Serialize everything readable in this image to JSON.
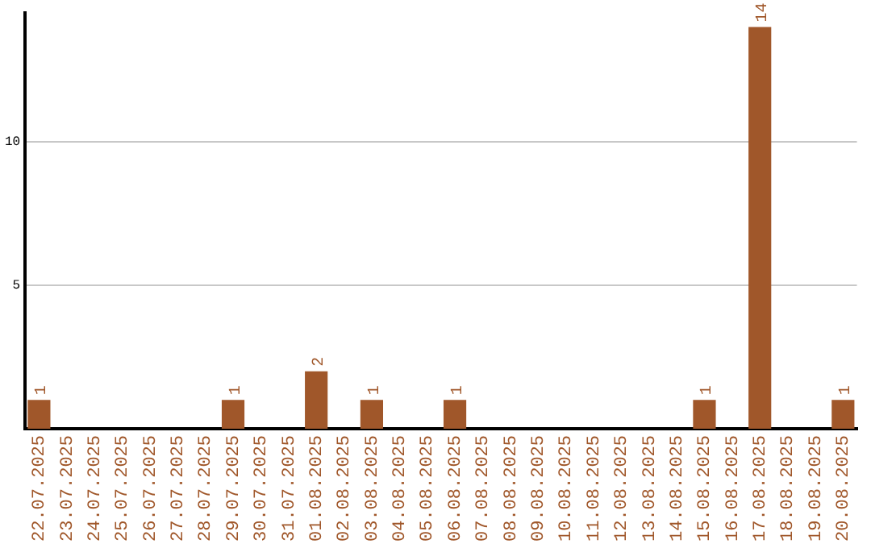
{
  "chart_data": {
    "type": "bar",
    "categories": [
      "22.07.2025",
      "23.07.2025",
      "24.07.2025",
      "25.07.2025",
      "26.07.2025",
      "27.07.2025",
      "28.07.2025",
      "29.07.2025",
      "30.07.2025",
      "31.07.2025",
      "01.08.2025",
      "02.08.2025",
      "03.08.2025",
      "04.08.2025",
      "05.08.2025",
      "06.08.2025",
      "07.08.2025",
      "08.08.2025",
      "09.08.2025",
      "10.08.2025",
      "11.08.2025",
      "12.08.2025",
      "13.08.2025",
      "14.08.2025",
      "15.08.2025",
      "16.08.2025",
      "17.08.2025",
      "18.08.2025",
      "19.08.2025",
      "20.08.2025"
    ],
    "values": [
      1,
      0,
      0,
      0,
      0,
      0,
      0,
      1,
      0,
      0,
      2,
      0,
      1,
      0,
      0,
      1,
      0,
      0,
      0,
      0,
      0,
      0,
      0,
      0,
      1,
      0,
      14,
      0,
      0,
      1
    ],
    "value_labels": [
      "1",
      null,
      null,
      null,
      null,
      null,
      null,
      "1",
      null,
      null,
      "2",
      null,
      "1",
      null,
      null,
      "1",
      null,
      null,
      null,
      null,
      null,
      null,
      null,
      null,
      "1",
      null,
      "14",
      null,
      null,
      "1"
    ],
    "color": "#a0572a",
    "ylim": [
      0,
      14.5
    ],
    "yticks": [
      5,
      10
    ],
    "grid": "y",
    "legend": false
  }
}
